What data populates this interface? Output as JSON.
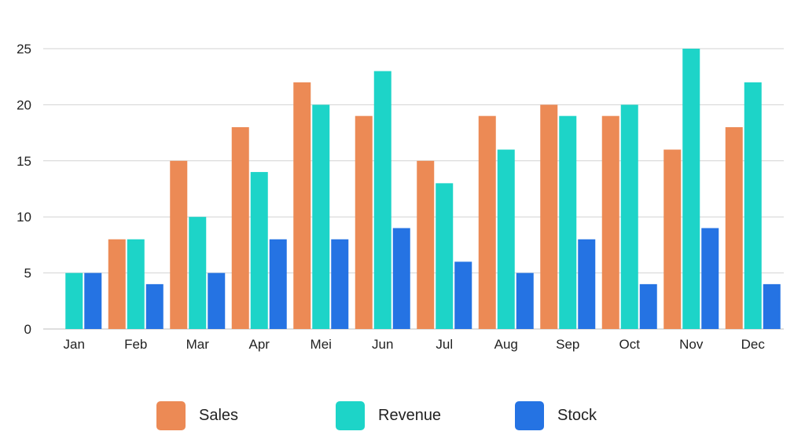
{
  "chart_data": {
    "type": "bar",
    "categories": [
      "Jan",
      "Feb",
      "Mar",
      "Apr",
      "Mei",
      "Jun",
      "Jul",
      "Aug",
      "Sep",
      "Oct",
      "Nov",
      "Dec"
    ],
    "series": [
      {
        "name": "Sales",
        "color": "#EC8A55",
        "values": [
          0,
          8,
          15,
          18,
          22,
          19,
          15,
          19,
          20,
          19,
          16,
          18
        ]
      },
      {
        "name": "Revenue",
        "color": "#1DD4C8",
        "values": [
          5,
          8,
          10,
          14,
          20,
          23,
          13,
          16,
          19,
          20,
          25,
          22
        ]
      },
      {
        "name": "Stock",
        "color": "#2573E3",
        "values": [
          5,
          4,
          5,
          8,
          8,
          9,
          6,
          5,
          8,
          4,
          9,
          4
        ]
      }
    ],
    "yticks": [
      0,
      5,
      10,
      15,
      20,
      25
    ],
    "ylim": [
      0,
      25
    ],
    "grid": true,
    "legend_position": "bottom"
  }
}
